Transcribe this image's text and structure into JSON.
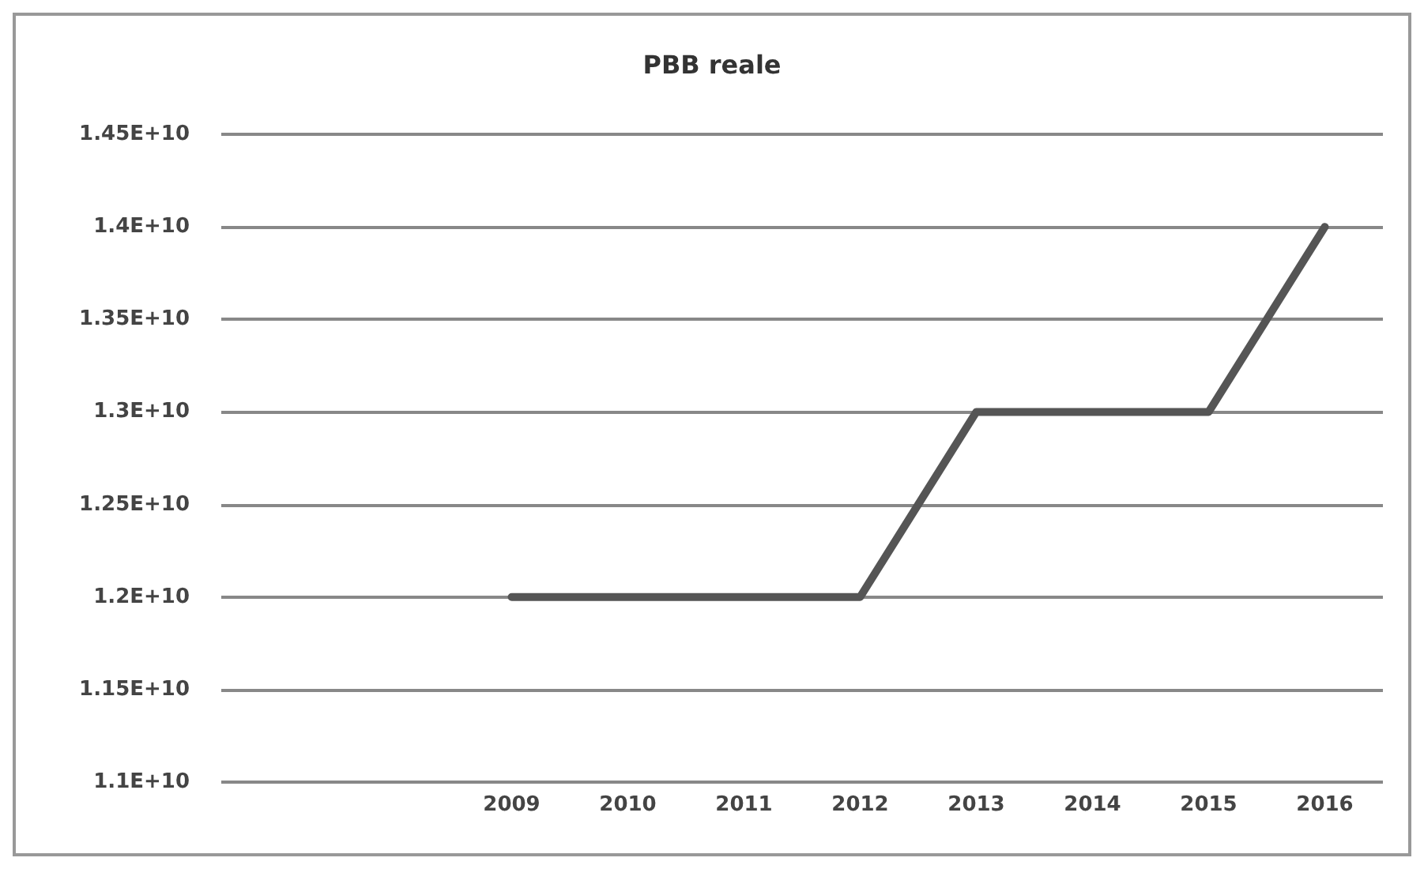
{
  "chart_data": {
    "type": "line",
    "title": "PBB reale",
    "categories": [
      null,
      null,
      "2009",
      "2010",
      "2011",
      "2012",
      "2013",
      "2014",
      "2015",
      "2016"
    ],
    "series": [
      {
        "color": "#555555",
        "values": [
          null,
          null,
          12000000000,
          12000000000,
          12000000000,
          12000000000,
          13000000000,
          13000000000,
          13000000000,
          14000000000
        ]
      }
    ],
    "ylim": [
      11000000000,
      14500000000
    ],
    "yticks": [
      {
        "value": 11000000000,
        "label": "1.1E+10"
      },
      {
        "value": 11500000000,
        "label": "1.15E+10"
      },
      {
        "value": 12000000000,
        "label": "1.2E+10"
      },
      {
        "value": 12500000000,
        "label": "1.25E+10"
      },
      {
        "value": 13000000000,
        "label": "1.3E+10"
      },
      {
        "value": 13500000000,
        "label": "1.35E+10"
      },
      {
        "value": 14000000000,
        "label": "1.4E+10"
      },
      {
        "value": 14500000000,
        "label": "1.45E+10"
      }
    ],
    "grid": "y",
    "marker": "none",
    "line_style": "solid"
  }
}
